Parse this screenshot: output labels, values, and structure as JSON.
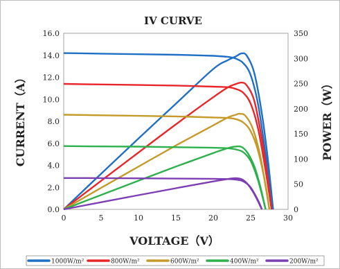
{
  "chart_data": {
    "type": "line",
    "title": "IV CURVE",
    "xlabel": "VOLTAGE（V）",
    "ylabel_left": "CURRENT（A）",
    "ylabel_right": "POWER（W）",
    "xlim": [
      0,
      30
    ],
    "ylim_left": [
      0,
      16
    ],
    "ylim_right": [
      0,
      350
    ],
    "x_ticks": [
      0,
      5,
      10,
      15,
      20,
      25,
      30
    ],
    "y_left_ticks": [
      "0.0",
      "2.0",
      "4.0",
      "6.0",
      "8.0",
      "10.0",
      "12.0",
      "14.0",
      "16.0"
    ],
    "y_right_ticks": [
      0,
      50,
      100,
      150,
      200,
      250,
      300,
      350
    ],
    "grid": "horizontal",
    "legend_position": "bottom",
    "series": [
      {
        "name": "1000W/m²",
        "color": "#1f6fc4",
        "current": {
          "x": [
            0,
            5,
            10,
            15,
            20,
            22,
            23,
            24,
            25,
            26,
            27,
            27.5,
            28
          ],
          "y": [
            14.2,
            14.15,
            14.1,
            14.05,
            13.95,
            13.85,
            13.7,
            13.3,
            12.2,
            9.5,
            5.0,
            2.3,
            0
          ]
        },
        "power": {
          "x": [
            0,
            5,
            10,
            15,
            20,
            22,
            23,
            23.8,
            24.5,
            25.5,
            26.5,
            27.3,
            28
          ],
          "y": [
            0,
            70.8,
            141,
            210,
            279,
            297,
            304,
            310,
            305,
            270,
            190,
            100,
            0
          ]
        }
      },
      {
        "name": "800W/m²",
        "color": "#e8262a",
        "current": {
          "x": [
            0,
            5,
            10,
            15,
            20,
            22,
            23,
            24,
            25,
            26,
            27,
            27.8
          ],
          "y": [
            11.4,
            11.35,
            11.3,
            11.25,
            11.15,
            11.1,
            10.95,
            10.6,
            9.6,
            7.3,
            3.5,
            0
          ]
        },
        "power": {
          "x": [
            0,
            5,
            10,
            15,
            20,
            22,
            23,
            23.8,
            24.5,
            25.5,
            26.5,
            27.2,
            27.8
          ],
          "y": [
            0,
            56.8,
            113,
            169,
            223,
            243,
            249,
            252,
            246,
            215,
            140,
            70,
            0
          ]
        }
      },
      {
        "name": "600W/m²",
        "color": "#c49a28",
        "current": {
          "x": [
            0,
            5,
            10,
            15,
            20,
            22,
            23,
            24,
            25,
            26,
            27,
            27.5
          ],
          "y": [
            8.6,
            8.55,
            8.5,
            8.45,
            8.35,
            8.3,
            8.2,
            7.9,
            7.1,
            5.3,
            2.2,
            0
          ]
        },
        "power": {
          "x": [
            0,
            5,
            10,
            15,
            20,
            22,
            23,
            23.5,
            24.3,
            25.3,
            26.3,
            27,
            27.5
          ],
          "y": [
            0,
            42.8,
            85,
            127,
            167,
            183,
            188,
            190,
            186,
            160,
            105,
            45,
            0
          ]
        }
      },
      {
        "name": "400W/m²",
        "color": "#2eb14c",
        "current": {
          "x": [
            0,
            5,
            10,
            15,
            20,
            22,
            23,
            24,
            25,
            26,
            27
          ],
          "y": [
            5.75,
            5.72,
            5.7,
            5.65,
            5.6,
            5.55,
            5.45,
            5.2,
            4.4,
            2.6,
            0
          ]
        },
        "power": {
          "x": [
            0,
            5,
            10,
            15,
            20,
            22,
            23,
            23.8,
            24.6,
            25.5,
            26.3,
            27
          ],
          "y": [
            0,
            28.6,
            57,
            85,
            112,
            122,
            125,
            124,
            112,
            85,
            45,
            0
          ]
        }
      },
      {
        "name": "200W/m²",
        "color": "#7d3eb4",
        "current": {
          "x": [
            0,
            5,
            10,
            15,
            20,
            22,
            23,
            24,
            25,
            26,
            26.5
          ],
          "y": [
            2.85,
            2.84,
            2.82,
            2.8,
            2.78,
            2.75,
            2.7,
            2.55,
            2.0,
            0.8,
            0
          ]
        },
        "power": {
          "x": [
            0,
            5,
            10,
            15,
            20,
            22,
            23,
            23.8,
            24.6,
            25.5,
            26.5
          ],
          "y": [
            0,
            14.2,
            28.2,
            42,
            55.6,
            60.5,
            62,
            60,
            50,
            30,
            0
          ]
        }
      }
    ]
  }
}
